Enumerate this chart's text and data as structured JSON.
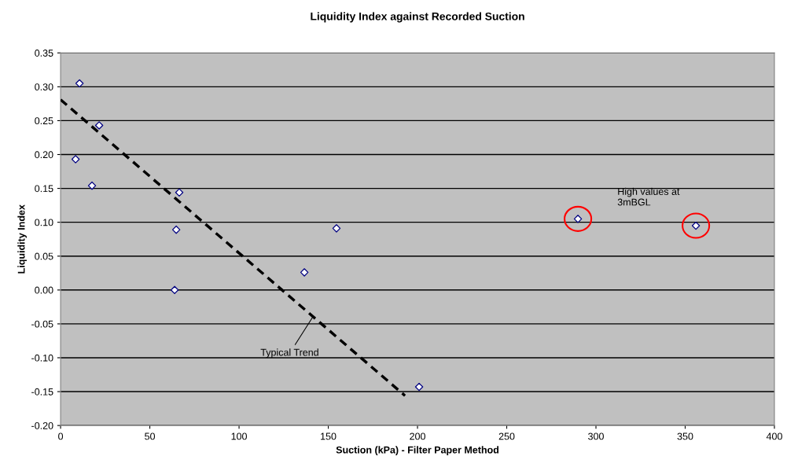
{
  "chart_data": {
    "type": "scatter",
    "title": "Liquidity Index against Recorded Suction",
    "xlabel": "Suction (kPa) - Filter Paper Method",
    "ylabel": "Liquidity Index",
    "series": [
      {
        "color": "#000080",
        "marker": "diamond",
        "x": [
          10.6,
          21.6,
          8.4,
          17.6,
          66.5,
          64.8,
          63.9,
          136.6,
          154.6,
          200.9
        ],
        "values": [
          0.305,
          0.243,
          0.193,
          0.154,
          0.144,
          0.089,
          0.0,
          0.026,
          0.091,
          -0.143
        ]
      },
      {
        "color": "#000080",
        "marker": "diamond",
        "x": [
          289.9,
          356
        ],
        "values": [
          0.105,
          0.095
        ]
      },
      {
        "type": "line",
        "color": "#000000",
        "line_style": "dashed",
        "marker": "none",
        "x": [
          0,
          193
        ],
        "values": [
          0.281,
          -0.156
        ]
      }
    ],
    "annotations": [
      {
        "text": "Typical Trend",
        "x": 142,
        "y": -0.037
      },
      "High values at\n3mBGL"
    ],
    "xlim": [
      0,
      400
    ],
    "xticks": [
      0,
      50,
      100,
      150,
      200,
      250,
      300,
      350,
      400
    ],
    "ylim": [
      -0.2,
      0.35
    ],
    "yticks": [
      {
        "value": -0.2,
        "label": "-0.20"
      },
      {
        "value": -0.15,
        "label": "-0.15"
      },
      {
        "value": -0.1,
        "label": "-0.10"
      },
      {
        "value": -0.05,
        "label": "-0.05"
      },
      {
        "value": 0,
        "label": "0.00"
      },
      {
        "value": 0.05,
        "label": "0.05"
      },
      {
        "value": 0.1,
        "label": "0.10"
      },
      {
        "value": 0.15,
        "label": "0.15"
      },
      {
        "value": 0.2,
        "label": "0.20"
      },
      {
        "value": 0.25,
        "label": "0.25"
      },
      {
        "value": 0.3,
        "label": "0.30"
      },
      {
        "value": 0.35,
        "label": "0.35"
      }
    ],
    "grid": "y",
    "legend": false
  }
}
